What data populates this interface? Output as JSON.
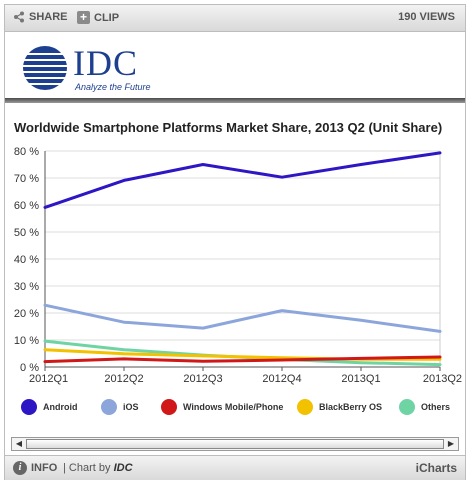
{
  "toolbar": {
    "share_label": "SHARE",
    "clip_label": "CLIP",
    "views_label": "190 VIEWS"
  },
  "logo": {
    "name": "IDC",
    "tagline": "Analyze the Future"
  },
  "footer": {
    "info_label": "INFO",
    "chart_by_prefix": "| Chart by",
    "chart_by_name": "IDC",
    "brand": "iCharts"
  },
  "chart_data": {
    "type": "line",
    "title": "Worldwide Smartphone Platforms Market Share, 2013 Q2 (Unit Share)",
    "x": [
      "2012Q1",
      "2012Q2",
      "2012Q3",
      "2012Q4",
      "2013Q1",
      "2013Q2"
    ],
    "ylim": [
      0,
      80
    ],
    "yticks": [
      0,
      10,
      20,
      30,
      40,
      50,
      60,
      70,
      80
    ],
    "ytick_labels": [
      "0 %",
      "10 %",
      "20 %",
      "30 %",
      "40 %",
      "50 %",
      "60 %",
      "70 %",
      "80 %"
    ],
    "grid": "horizontal",
    "legend_position": "bottom",
    "series": [
      {
        "name": "Android",
        "color": "#2d16c4",
        "values": [
          59.1,
          69.1,
          75.0,
          70.3,
          75.0,
          79.3
        ]
      },
      {
        "name": "iOS",
        "color": "#8ca6dc",
        "values": [
          22.9,
          16.6,
          14.4,
          20.9,
          17.3,
          13.2
        ]
      },
      {
        "name": "Windows Mobile/Phone",
        "color": "#d01818",
        "values": [
          2.0,
          3.0,
          2.1,
          2.6,
          3.2,
          3.7
        ]
      },
      {
        "name": "BlackBerry OS",
        "color": "#f2c100",
        "values": [
          6.4,
          4.9,
          4.1,
          3.4,
          2.9,
          2.9
        ]
      },
      {
        "name": "Others",
        "color": "#6fd4a4",
        "values": [
          9.6,
          6.4,
          4.4,
          2.8,
          1.6,
          0.9
        ]
      }
    ]
  }
}
